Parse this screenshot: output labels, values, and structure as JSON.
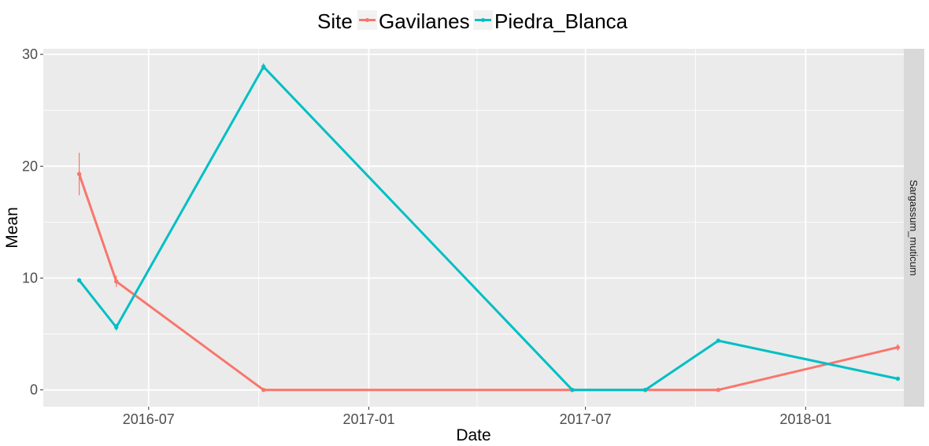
{
  "chart_data": {
    "type": "line",
    "xlabel": "Date",
    "ylabel": "Mean",
    "facet_label": "Sargassum_muticum",
    "legend": {
      "title": "Site",
      "position": "top"
    },
    "x_ticks": [
      "2016-07",
      "2017-01",
      "2017-07",
      "2018-01"
    ],
    "x_tick_dates": [
      "2016-07-01",
      "2017-01-01",
      "2017-07-01",
      "2018-01-01"
    ],
    "y_ticks": [
      0,
      10,
      20,
      30
    ],
    "xlim": [
      "2016-04-04",
      "2018-03-24"
    ],
    "ylim": [
      -1.5,
      30.5
    ],
    "grid": true,
    "series": [
      {
        "name": "Gavilanes",
        "color": "#F8766D",
        "points": [
          {
            "x": "2016-05-04",
            "y": 19.3,
            "ymin": 17.4,
            "ymax": 21.2
          },
          {
            "x": "2016-06-04",
            "y": 9.7,
            "ymin": 9.2,
            "ymax": 10.2
          },
          {
            "x": "2016-10-05",
            "y": 0,
            "ymin": 0,
            "ymax": 0
          },
          {
            "x": "2017-06-20",
            "y": 0,
            "ymin": 0,
            "ymax": 0
          },
          {
            "x": "2017-08-20",
            "y": 0,
            "ymin": 0,
            "ymax": 0
          },
          {
            "x": "2017-10-20",
            "y": 0,
            "ymin": 0,
            "ymax": 0
          },
          {
            "x": "2018-03-19",
            "y": 3.8,
            "ymin": 3.5,
            "ymax": 4.1
          }
        ]
      },
      {
        "name": "Piedra_Blanca",
        "color": "#00BFC4",
        "points": [
          {
            "x": "2016-05-04",
            "y": 9.8,
            "ymin": 9.6,
            "ymax": 10.0
          },
          {
            "x": "2016-06-04",
            "y": 5.6,
            "ymin": 5.3,
            "ymax": 5.9
          },
          {
            "x": "2016-10-05",
            "y": 28.9,
            "ymin": 28.6,
            "ymax": 29.2
          },
          {
            "x": "2017-06-20",
            "y": 0,
            "ymin": 0,
            "ymax": 0
          },
          {
            "x": "2017-08-20",
            "y": 0,
            "ymin": 0,
            "ymax": 0
          },
          {
            "x": "2017-10-20",
            "y": 4.4,
            "ymin": 4.3,
            "ymax": 4.5
          },
          {
            "x": "2018-03-19",
            "y": 1.0,
            "ymin": 0.9,
            "ymax": 1.1
          }
        ]
      }
    ]
  }
}
